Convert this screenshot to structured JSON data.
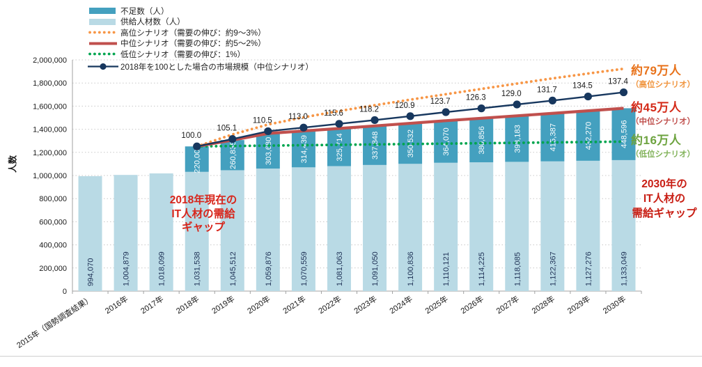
{
  "y_axis": {
    "title": "人数",
    "tick_labels": [
      "0",
      "200,000",
      "400,000",
      "600,000",
      "800,000",
      "1,000,000",
      "1,200,000",
      "1,400,000",
      "1,600,000",
      "1,800,000",
      "2,000,000"
    ],
    "max": 2000000,
    "step": 200000
  },
  "legend": {
    "items": [
      {
        "label": "不足数（人）",
        "swatch": "bar",
        "color": "#44a0bf"
      },
      {
        "label": "供給人材数（人）",
        "swatch": "bar",
        "color": "#b9dae5"
      },
      {
        "label": "高位シナリオ（需要の伸び：約9～3%）",
        "swatch": "dotted",
        "color": "#f79646"
      },
      {
        "label": "中位シナリオ（需要の伸び：約5～2%）",
        "swatch": "solid",
        "color": "#c0504d"
      },
      {
        "label": "低位シナリオ（需要の伸び：1%）",
        "swatch": "dotted",
        "color": "#00a550"
      },
      {
        "label": "2018年を100とした場合の市場規模（中位シナリオ）",
        "swatch": "marker-line",
        "color": "#17375e"
      }
    ]
  },
  "annotations": {
    "current_gap": {
      "lines": [
        "2018年現在の",
        "IT人材の需給",
        "ギャップ"
      ]
    },
    "gap_high": {
      "value": "約79万人",
      "scenario": "（高位シナリオ）"
    },
    "gap_mid": {
      "value": "約45万人",
      "scenario": "（中位シナリオ）"
    },
    "gap_low": {
      "value": "約16万人",
      "scenario": "（低位シナリオ）"
    },
    "gap_2030_title": {
      "lines": [
        "2030年の",
        "IT人材の",
        "需給ギャップ"
      ]
    }
  },
  "chart_data": {
    "type": "bar",
    "subtype": "stacked bars with scenario lines and indexed market-size line",
    "categories": [
      "2015年（国勢調査結果）",
      "2016年",
      "2017年",
      "2018年",
      "2019年",
      "2020年",
      "2021年",
      "2022年",
      "2023年",
      "2024年",
      "2025年",
      "2026年",
      "2027年",
      "2028年",
      "2029年",
      "2030年"
    ],
    "ylabel": "人数",
    "ylim": [
      0,
      2000000
    ],
    "grid": true,
    "legend_position": "top-left",
    "series": [
      {
        "name": "供給人材数（人）",
        "type": "bar",
        "stack": "base",
        "color": "#b9dae5",
        "values": [
          994070,
          1004879,
          1018099,
          1031538,
          1045512,
          1059876,
          1070559,
          1081063,
          1091050,
          1100836,
          1110121,
          1114225,
          1118085,
          1122367,
          1127276,
          1133049
        ]
      },
      {
        "name": "不足数（人）",
        "type": "bar",
        "stack": "top",
        "color": "#44a0bf",
        "values": [
          null,
          null,
          null,
          220000,
          260835,
          303680,
          314439,
          325714,
          337848,
          350532,
          364070,
          380856,
          398183,
          415387,
          432270,
          448596
        ]
      },
      {
        "name": "高位シナリオ（需要の伸び：約9～3%）",
        "type": "line",
        "style": "dotted",
        "color": "#f79646",
        "estimated": true,
        "values": [
          null,
          null,
          null,
          1251538,
          1355000,
          1441000,
          1503000,
          1558000,
          1608000,
          1656000,
          1703000,
          1749000,
          1795000,
          1840000,
          1882000,
          1923049
        ]
      },
      {
        "name": "中位シナリオ（需要の伸び：約5～2%）",
        "type": "line",
        "style": "solid",
        "color": "#c0504d",
        "values": [
          null,
          null,
          null,
          1251538,
          1306347,
          1363556,
          1384998,
          1406777,
          1428898,
          1451368,
          1474191,
          1495081,
          1516268,
          1537754,
          1559546,
          1581645
        ]
      },
      {
        "name": "低位シナリオ（需要の伸び：1%）",
        "type": "line",
        "style": "dotted",
        "color": "#00a550",
        "estimated": true,
        "values": [
          null,
          null,
          null,
          1251538,
          1254997,
          1258457,
          1261916,
          1265375,
          1268834,
          1272294,
          1275753,
          1279212,
          1282671,
          1286131,
          1289590,
          1293049
        ]
      },
      {
        "name": "2018年を100とした場合の市場規模（中位シナリオ）",
        "type": "line",
        "style": "marker",
        "color": "#17375e",
        "index_base_people": 1251538,
        "index_labels": [
          "100.0",
          "105.1",
          "110.5",
          "113.0",
          "115.6",
          "118.2",
          "120.9",
          "123.7",
          "126.3",
          "129.0",
          "131.7",
          "134.5",
          "137.4"
        ],
        "index_values": [
          100.0,
          105.1,
          110.5,
          113.0,
          115.6,
          118.2,
          120.9,
          123.7,
          126.3,
          129.0,
          131.7,
          134.5,
          137.4
        ]
      }
    ]
  },
  "colors": {
    "bar_shortage": "#44a0bf",
    "bar_supply": "#b9dae5",
    "line_high": "#f79646",
    "line_mid": "#c0504d",
    "line_low": "#00a550",
    "line_index": "#17375e",
    "gridline": "#c8c8c8",
    "axis": "#a0a0a0",
    "annotation_red": "#d8261c"
  }
}
